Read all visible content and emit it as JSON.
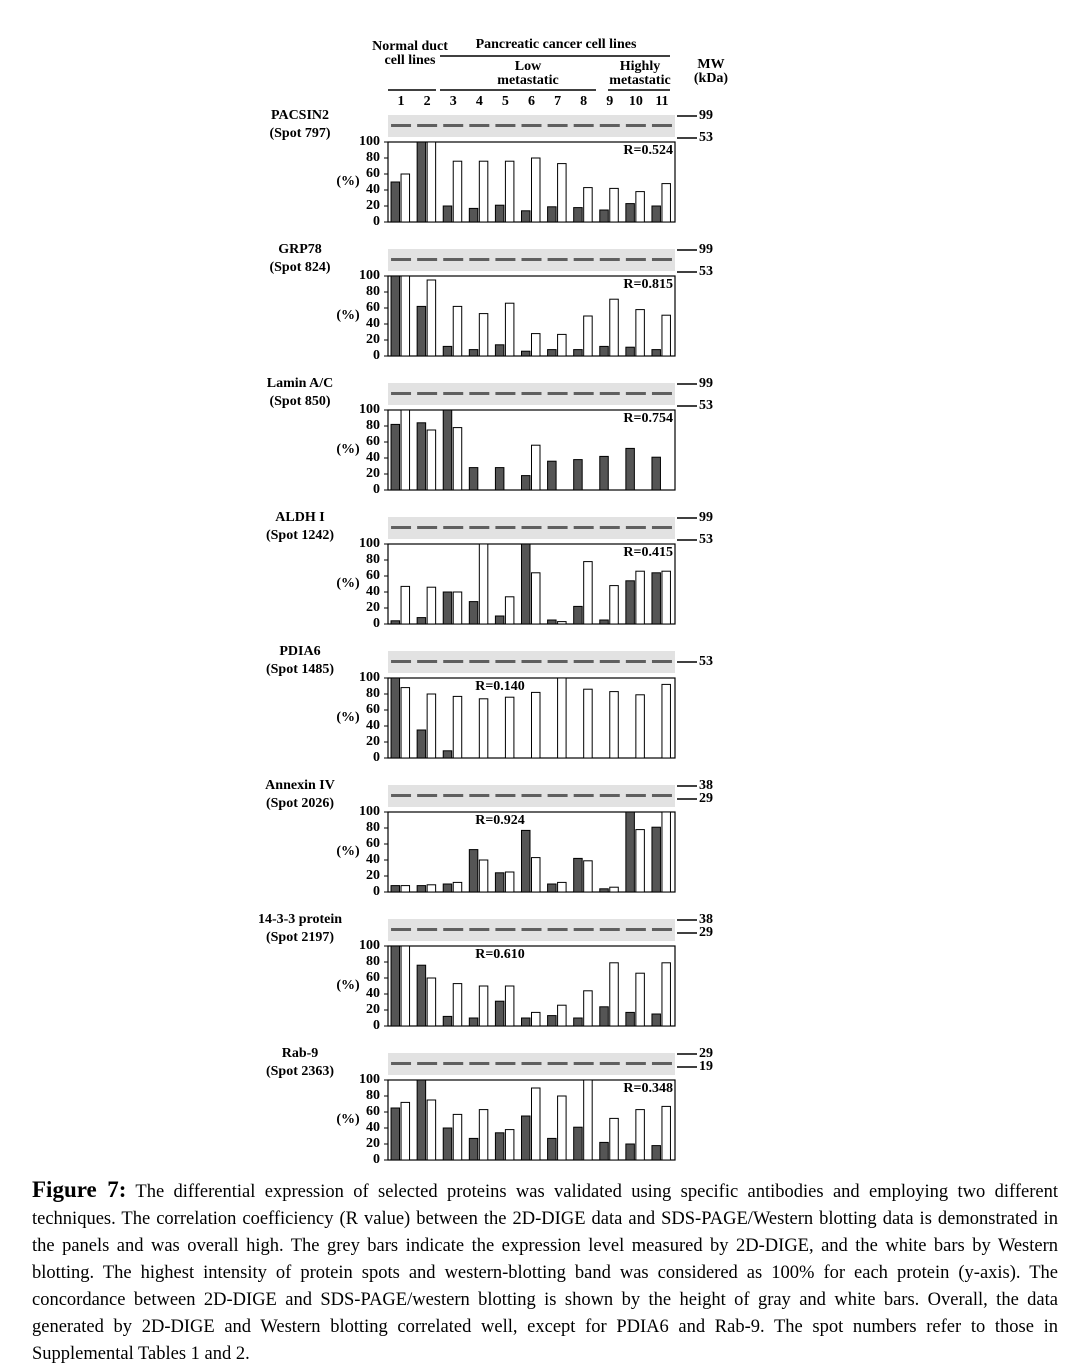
{
  "header": {
    "normal": "Normal duct cell lines",
    "cancer": "Pancreatic cancer cell lines",
    "low": "Low metastatic",
    "high": "Highly metastatic",
    "mw": "MW (kDa)",
    "lanes": [
      "1",
      "2",
      "3",
      "4",
      "5",
      "6",
      "7",
      "8",
      "9",
      "10",
      "11"
    ]
  },
  "chart_data": [
    {
      "type": "bar",
      "title": "PACSIN2",
      "subtitle": "(Spot 797)",
      "annotation": "R=0.524",
      "annotation_corner": "top-right",
      "ylabel": "(%)",
      "ylim": [
        0,
        100
      ],
      "yticks": [
        0,
        20,
        40,
        60,
        80,
        100
      ],
      "mw_markers": [
        99,
        53
      ],
      "series": [
        {
          "color": "#555555",
          "values": [
            50,
            100,
            20,
            17,
            21,
            14,
            19,
            18,
            15,
            23,
            20
          ]
        },
        {
          "color": "#ffffff",
          "values": [
            60,
            100,
            76,
            76,
            76,
            80,
            73,
            43,
            42,
            38,
            48
          ]
        }
      ]
    },
    {
      "type": "bar",
      "title": "GRP78",
      "subtitle": "(Spot 824)",
      "annotation": "R=0.815",
      "annotation_corner": "top-right",
      "ylabel": "(%)",
      "ylim": [
        0,
        100
      ],
      "yticks": [
        0,
        20,
        40,
        60,
        80,
        100
      ],
      "mw_markers": [
        99,
        53
      ],
      "series": [
        {
          "color": "#555555",
          "values": [
            100,
            62,
            12,
            8,
            14,
            6,
            8,
            8,
            12,
            11,
            8
          ]
        },
        {
          "color": "#ffffff",
          "values": [
            100,
            95,
            62,
            53,
            66,
            28,
            27,
            50,
            71,
            58,
            51
          ]
        }
      ]
    },
    {
      "type": "bar",
      "title": "Lamin A/C",
      "subtitle": "(Spot 850)",
      "annotation": "R=0.754",
      "annotation_corner": "top-right",
      "ylabel": "(%)",
      "ylim": [
        0,
        100
      ],
      "yticks": [
        0,
        20,
        40,
        60,
        80,
        100
      ],
      "mw_markers": [
        99,
        53
      ],
      "series": [
        {
          "color": "#555555",
          "values": [
            82,
            84,
            100,
            28,
            28,
            18,
            36,
            38,
            42,
            52,
            41
          ]
        },
        {
          "color": "#ffffff",
          "values": [
            100,
            75,
            78,
            0,
            0,
            56,
            0,
            0,
            0,
            0,
            0
          ]
        }
      ]
    },
    {
      "type": "bar",
      "title": "ALDH I",
      "subtitle": "(Spot 1242)",
      "annotation": "R=0.415",
      "annotation_corner": "top-right",
      "ylabel": "(%)",
      "ylim": [
        0,
        100
      ],
      "yticks": [
        0,
        20,
        40,
        60,
        80,
        100
      ],
      "mw_markers": [
        99,
        53
      ],
      "series": [
        {
          "color": "#555555",
          "values": [
            4,
            8,
            40,
            28,
            10,
            100,
            5,
            22,
            5,
            54,
            64
          ]
        },
        {
          "color": "#ffffff",
          "values": [
            47,
            46,
            40,
            100,
            34,
            64,
            3,
            78,
            48,
            66,
            66
          ]
        }
      ]
    },
    {
      "type": "bar",
      "title": "PDIA6",
      "subtitle": "(Spot 1485)",
      "annotation": "R=0.140",
      "annotation_corner": "top-center",
      "ylabel": "(%)",
      "ylim": [
        0,
        100
      ],
      "yticks": [
        0,
        20,
        40,
        60,
        80,
        100
      ],
      "mw_markers": [
        53
      ],
      "series": [
        {
          "color": "#555555",
          "values": [
            100,
            35,
            9,
            0,
            0,
            0,
            0,
            0,
            0,
            0,
            0
          ]
        },
        {
          "color": "#ffffff",
          "values": [
            88,
            80,
            77,
            74,
            76,
            82,
            100,
            86,
            83,
            79,
            92
          ]
        }
      ]
    },
    {
      "type": "bar",
      "title": "Annexin IV",
      "subtitle": "(Spot 2026)",
      "annotation": "R=0.924",
      "annotation_corner": "top-center",
      "ylabel": "(%)",
      "ylim": [
        0,
        100
      ],
      "yticks": [
        0,
        20,
        40,
        60,
        80,
        100
      ],
      "mw_markers": [
        38,
        29
      ],
      "series": [
        {
          "color": "#555555",
          "values": [
            8,
            8,
            10,
            53,
            24,
            77,
            10,
            42,
            4,
            100,
            81
          ]
        },
        {
          "color": "#ffffff",
          "values": [
            8,
            9,
            12,
            40,
            25,
            43,
            12,
            39,
            6,
            78,
            100
          ]
        }
      ]
    },
    {
      "type": "bar",
      "title": "14-3-3 protein",
      "subtitle": "(Spot 2197)",
      "annotation": "R=0.610",
      "annotation_corner": "top-center",
      "ylabel": "(%)",
      "ylim": [
        0,
        100
      ],
      "yticks": [
        0,
        20,
        40,
        60,
        80,
        100
      ],
      "mw_markers": [
        38,
        29
      ],
      "series": [
        {
          "color": "#555555",
          "values": [
            100,
            76,
            12,
            10,
            31,
            10,
            13,
            10,
            24,
            17,
            15
          ]
        },
        {
          "color": "#ffffff",
          "values": [
            100,
            60,
            53,
            50,
            50,
            17,
            26,
            44,
            79,
            66,
            79
          ]
        }
      ]
    },
    {
      "type": "bar",
      "title": "Rab-9",
      "subtitle": "(Spot 2363)",
      "annotation": "R=0.348",
      "annotation_corner": "top-right",
      "ylabel": "(%)",
      "ylim": [
        0,
        100
      ],
      "yticks": [
        0,
        20,
        40,
        60,
        80,
        100
      ],
      "mw_markers": [
        29,
        19
      ],
      "series": [
        {
          "color": "#555555",
          "values": [
            65,
            100,
            40,
            27,
            34,
            55,
            27,
            41,
            22,
            20,
            18
          ]
        },
        {
          "color": "#ffffff",
          "values": [
            72,
            75,
            57,
            63,
            38,
            90,
            80,
            100,
            52,
            63,
            67
          ]
        }
      ]
    }
  ],
  "caption": {
    "label": "Figure 7:",
    "text": "The differential expression of selected proteins was validated using specific antibodies and employing two different techniques. The correlation coefficiency (R value) between the 2D-DIGE data and SDS-PAGE/Western blotting data is demonstrated in the panels and was overall high. The grey bars indicate the expression level measured by 2D-DIGE, and the white bars by Western blotting. The highest intensity of protein spots and western-blotting band was considered as 100% for each protein (y-axis). The concordance between 2D-DIGE and SDS-PAGE/western blotting is shown by the height of gray and white bars. Overall, the data generated by 2D-DIGE and Western blotting correlated well, except for PDIA6 and Rab-9. The spot numbers refer to those in Supplemental Tables 1 and 2."
  }
}
